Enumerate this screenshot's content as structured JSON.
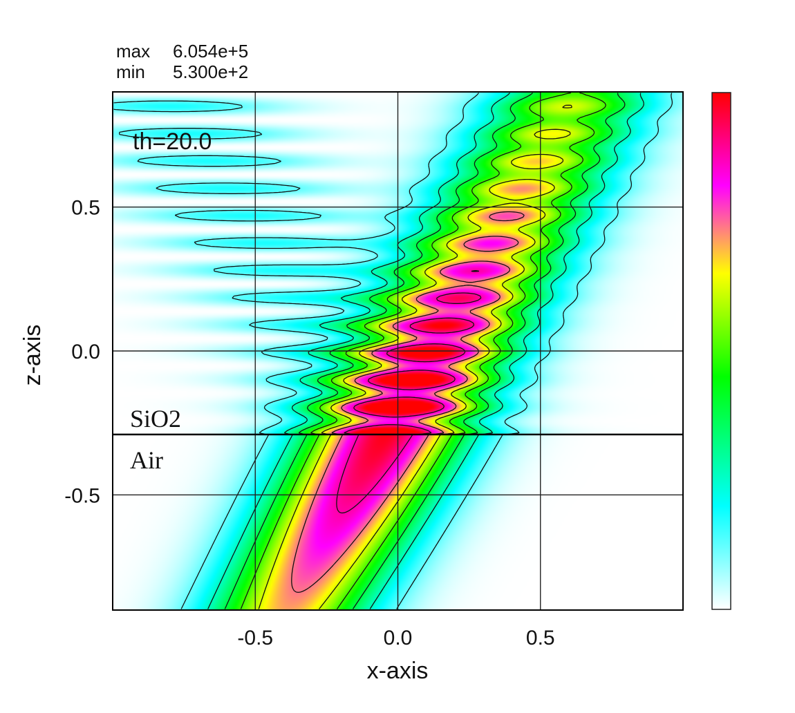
{
  "chart_data": {
    "type": "heatmap",
    "title": "",
    "xlabel": "x-axis",
    "ylabel": "z-axis",
    "xlim": [
      -1.0,
      1.0
    ],
    "ylim": [
      -0.9,
      0.9
    ],
    "x_ticks": [
      -0.5,
      0.0,
      0.5
    ],
    "x_tick_labels": [
      "-0.5",
      "0.0",
      "0.5"
    ],
    "y_ticks": [
      0.5,
      0.0,
      -0.5
    ],
    "y_tick_labels": [
      "0.5",
      "0.0",
      "-0.5"
    ],
    "grid": true,
    "interface_z": -0.29,
    "colorbar": true,
    "colormap": [
      "#ffffff",
      "#00ffff",
      "#00ff00",
      "#ffff00",
      "#ff00ff",
      "#ff0000"
    ],
    "stats": {
      "max_label": "max",
      "max_value": "6.054e+5",
      "min_label": "min",
      "min_value": "5.300e+2"
    },
    "annotations": {
      "angle": "th=20.0",
      "upper_medium": "SiO2",
      "lower_medium": "Air"
    }
  }
}
